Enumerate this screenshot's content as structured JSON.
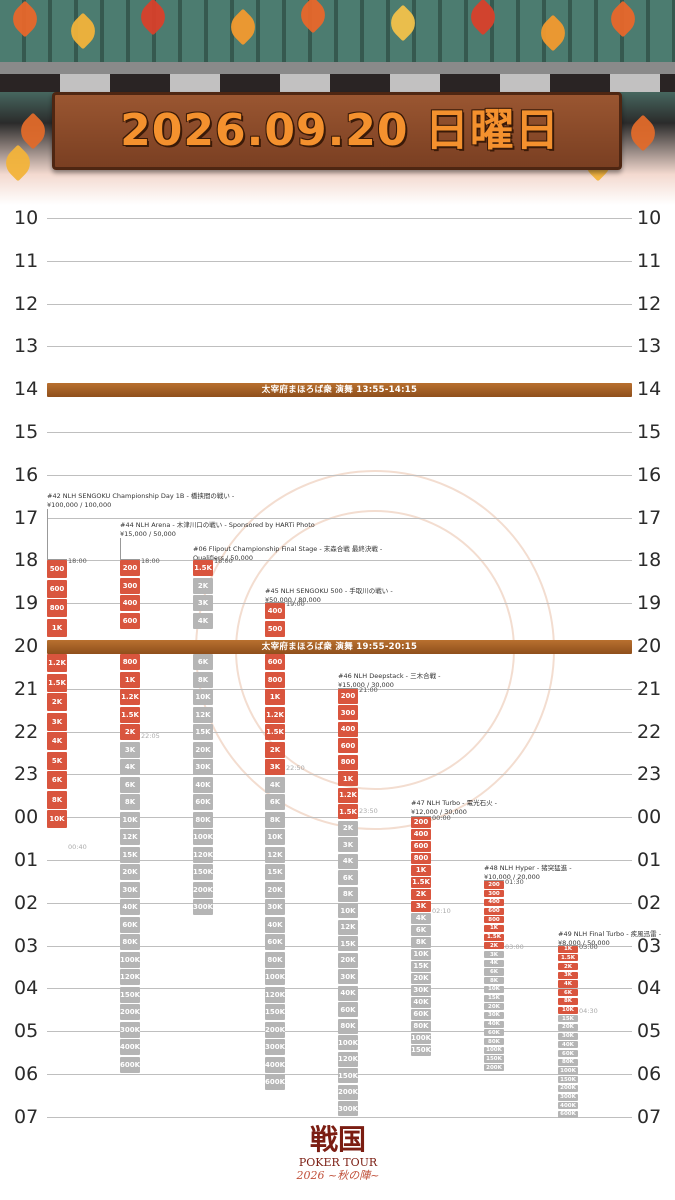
{
  "header": {
    "date": "2026.09.20 日曜日"
  },
  "hours": [
    "10",
    "11",
    "12",
    "13",
    "14",
    "15",
    "16",
    "17",
    "18",
    "19",
    "20",
    "21",
    "22",
    "23",
    "00",
    "01",
    "02",
    "03",
    "04",
    "05",
    "06",
    "07"
  ],
  "banners": [
    {
      "text": "太宰府まほろば衆 演舞 13:55-14:15",
      "at": 14.0
    },
    {
      "text": "太宰府まほろば衆 演舞 19:55-20:15",
      "at": 20.0
    }
  ],
  "events": [
    {
      "title": "#42 NLH SENGOKU Championship Day 1B - 橋挟間の戦い -",
      "price": "¥100,000 / 100,000",
      "start": "18:00",
      "late": "00:40",
      "levels": [
        "500",
        "600",
        "800",
        "1K",
        "1.2K",
        "1.5K",
        "2K",
        "3K",
        "4K",
        "5K",
        "6K",
        "8K",
        "10K"
      ]
    },
    {
      "title": "#44 NLH Arena - 木津川口の戦い - Sponsored by HARTi Photo",
      "price": "¥15,000 / 50,000",
      "start": "18:00",
      "late": "22:05",
      "levels": [
        "200",
        "300",
        "400",
        "600",
        "800",
        "1K",
        "1.2K",
        "1.5K",
        "2K",
        "3K",
        "4K",
        "6K",
        "8K",
        "10K",
        "12K",
        "15K",
        "20K",
        "30K",
        "40K",
        "60K",
        "80K",
        "100K",
        "120K",
        "150K",
        "200K",
        "300K",
        "400K",
        "600K"
      ]
    },
    {
      "title": "#06 Flipout Championship Final Stage - 末森合戦 最終決戦 -",
      "price": "Qualifiers / 50,000",
      "start": "18:00",
      "late": "",
      "levels": [
        "1.5K",
        "2K",
        "3K",
        "4K",
        "6K",
        "8K",
        "10K",
        "12K",
        "15K",
        "20K",
        "30K",
        "40K",
        "60K",
        "80K",
        "100K",
        "120K",
        "150K",
        "200K",
        "300K"
      ]
    },
    {
      "title": "#45 NLH SENGOKU 500 - 手取川の戦い -",
      "price": "¥50,000 / 80,000",
      "start": "19:00",
      "late": "22:50",
      "levels": [
        "400",
        "500",
        "600",
        "800",
        "1K",
        "1.2K",
        "1.5K",
        "2K",
        "3K",
        "4K",
        "6K",
        "8K",
        "10K",
        "12K",
        "15K",
        "20K",
        "30K",
        "40K",
        "60K",
        "80K",
        "100K",
        "120K",
        "150K",
        "200K",
        "300K",
        "400K",
        "600K"
      ]
    },
    {
      "title": "#46 NLH Deepstack - 三木合戦 -",
      "price": "¥15,000 / 30,000",
      "start": "21:00",
      "late": "23:50",
      "levels": [
        "200",
        "300",
        "400",
        "600",
        "800",
        "1K",
        "1.2K",
        "1.5K",
        "2K",
        "3K",
        "4K",
        "6K",
        "8K",
        "10K",
        "12K",
        "15K",
        "20K",
        "30K",
        "40K",
        "60K",
        "80K",
        "100K",
        "120K",
        "150K",
        "200K",
        "300K"
      ]
    },
    {
      "title": "#47 NLH Turbo - 電光石火 -",
      "price": "¥12,000 / 30,000",
      "start": "00:00",
      "late": "02:10",
      "levels": [
        "200",
        "400",
        "600",
        "800",
        "1K",
        "1.5K",
        "2K",
        "3K",
        "4K",
        "6K",
        "8K",
        "10K",
        "15K",
        "20K",
        "30K",
        "40K",
        "60K",
        "80K",
        "100K",
        "150K"
      ]
    },
    {
      "title": "#48 NLH Hyper - 猪突猛進 -",
      "price": "¥10,000 / 20,000",
      "start": "01:30",
      "late": "03:00",
      "levels": [
        "200",
        "300",
        "400",
        "600",
        "800",
        "1K",
        "1.5K",
        "2K",
        "3K",
        "4K",
        "6K",
        "8K",
        "10K",
        "15K",
        "20K",
        "30K",
        "40K",
        "60K",
        "80K",
        "100K",
        "150K",
        "200K"
      ]
    },
    {
      "title": "#49 NLH Final Turbo - 疾風迅雷 -",
      "price": "¥8,000 / 50,000",
      "start": "03:00",
      "late": "04:30",
      "levels": [
        "1K",
        "1.5K",
        "2K",
        "3K",
        "4K",
        "6K",
        "8K",
        "10K",
        "15K",
        "20K",
        "30K",
        "40K",
        "60K",
        "80K",
        "100K",
        "150K",
        "200K",
        "300K",
        "400K",
        "600K"
      ]
    }
  ],
  "logo": {
    "main": "戦国",
    "sub": "POKER TOUR",
    "year": "2026 ~秋の陣~"
  }
}
